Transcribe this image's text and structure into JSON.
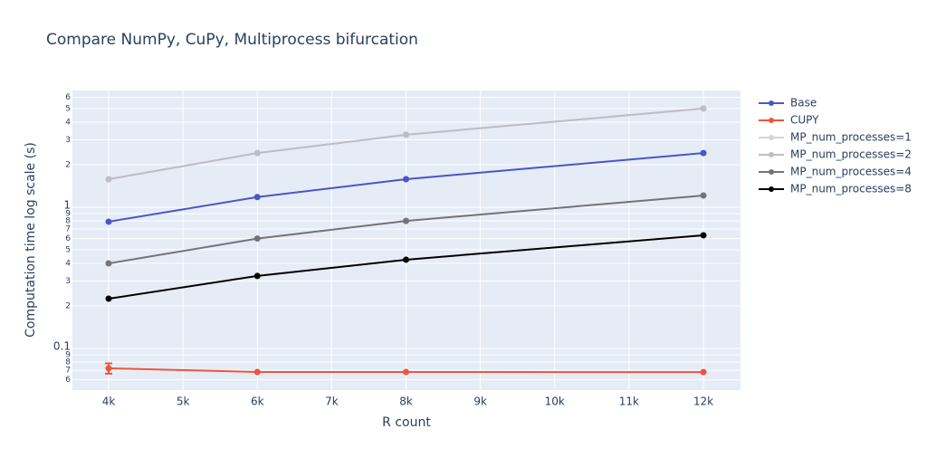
{
  "chart_data": {
    "type": "line",
    "title": "Compare NumPy, CuPy, Multiprocess bifurcation",
    "x_label": "R count",
    "y_label": "Computation time log scale (s)",
    "x": [
      4000,
      6000,
      8000,
      12000
    ],
    "xlim": [
      3513,
      12499
    ],
    "xticks": [
      {
        "value": 4000,
        "label": "4k"
      },
      {
        "value": 5000,
        "label": "5k"
      },
      {
        "value": 6000,
        "label": "6k"
      },
      {
        "value": 7000,
        "label": "7k"
      },
      {
        "value": 8000,
        "label": "8k"
      },
      {
        "value": 9000,
        "label": "9k"
      },
      {
        "value": 10000,
        "label": "10k"
      },
      {
        "value": 11000,
        "label": "11k"
      },
      {
        "value": 12000,
        "label": "12k"
      }
    ],
    "ylim": [
      0.0507,
      6.71
    ],
    "log_y": true,
    "grid": true,
    "yticks": [
      {
        "value": 0.06,
        "label": "6"
      },
      {
        "value": 0.07,
        "label": "7"
      },
      {
        "value": 0.08,
        "label": "8"
      },
      {
        "value": 0.09,
        "label": "9"
      },
      0.1,
      {
        "value": 0.2,
        "label": "2"
      },
      {
        "value": 0.3,
        "label": "3"
      },
      {
        "value": 0.4,
        "label": "4"
      },
      {
        "value": 0.5,
        "label": "5"
      },
      {
        "value": 0.6,
        "label": "6"
      },
      {
        "value": 0.7,
        "label": "7"
      },
      {
        "value": 0.8,
        "label": "8"
      },
      {
        "value": 0.9,
        "label": "9"
      },
      1,
      2,
      3,
      4,
      5,
      6
    ],
    "series": [
      {
        "name": "Base",
        "color": "#4a55c8",
        "values": [
          0.79,
          1.18,
          1.58,
          2.42
        ]
      },
      {
        "name": "CUPY",
        "color": "#ef553b",
        "values": [
          0.0723,
          0.0681,
          0.0681,
          0.068
        ],
        "errors": [
          0.006,
          null,
          null,
          null
        ]
      },
      {
        "name": "MP_num_processes=1",
        "color": "#d4d4da",
        "values": [
          1.58,
          2.42,
          3.26,
          5.0
        ]
      },
      {
        "name": "MP_num_processes=2",
        "color": "#bdbdc5",
        "values": [
          1.58,
          2.42,
          3.26,
          5.0
        ]
      },
      {
        "name": "MP_num_processes=4",
        "color": "#737378",
        "values": [
          0.4,
          0.6,
          0.8,
          1.21
        ]
      },
      {
        "name": "MP_num_processes=8",
        "color": "#000000",
        "values": [
          0.225,
          0.326,
          0.425,
          0.633
        ]
      }
    ]
  }
}
